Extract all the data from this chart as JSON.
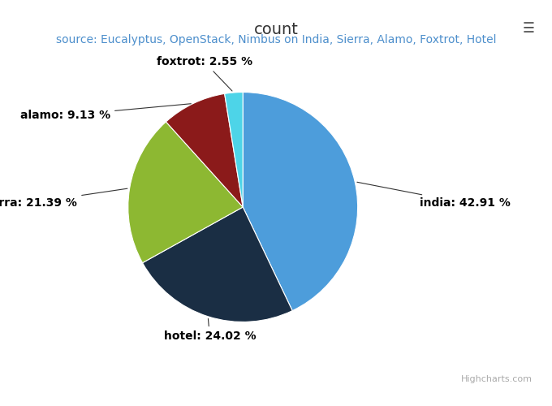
{
  "title": "count",
  "subtitle": "source: Eucalyptus, OpenStack, Nimbus on India, Sierra, Alamo, Foxtrot, Hotel",
  "slices": [
    {
      "label": "india",
      "pct": 42.91,
      "color": "#4d9ddb"
    },
    {
      "label": "hotel",
      "pct": 24.02,
      "color": "#1a2e44"
    },
    {
      "label": "sierra",
      "pct": 21.39,
      "color": "#8db832"
    },
    {
      "label": "alamo",
      "pct": 9.13,
      "color": "#8b1a1a"
    },
    {
      "label": "foxtrot",
      "pct": 2.55,
      "color": "#4dd4e8"
    }
  ],
  "bg_color": "#ffffff",
  "frame_color": "#cccccc",
  "title_color": "#333333",
  "subtitle_color": "#4d8fcc",
  "label_font_size": 10,
  "title_font_size": 14,
  "subtitle_font_size": 10,
  "watermark": "Highcharts.com",
  "menu_icon_color": "#555555",
  "label_positions": {
    "india": {
      "xt": 0.76,
      "yt": 0.5,
      "ha": "left",
      "va": "center"
    },
    "hotel": {
      "xt": 0.38,
      "yt": 0.82,
      "ha": "center",
      "va": "top"
    },
    "sierra": {
      "xt": 0.14,
      "yt": 0.5,
      "ha": "right",
      "va": "center"
    },
    "alamo": {
      "xt": 0.2,
      "yt": 0.28,
      "ha": "right",
      "va": "center"
    },
    "foxtrot": {
      "xt": 0.37,
      "yt": 0.16,
      "ha": "center",
      "va": "bottom"
    }
  }
}
